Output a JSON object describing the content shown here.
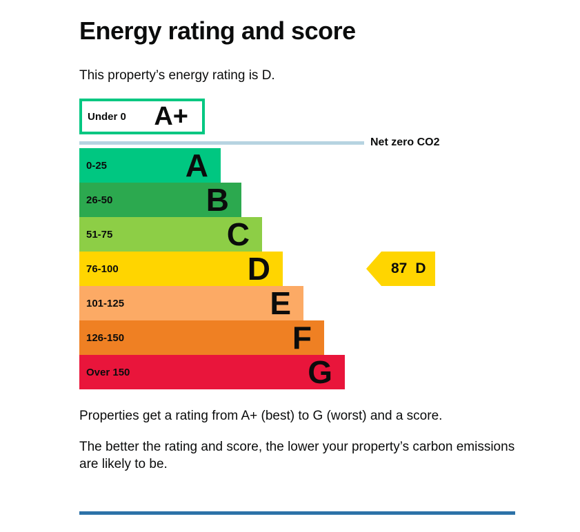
{
  "page": {
    "title": "Energy rating and score",
    "subtitle": "This property’s energy rating is D.",
    "footnote1": "Properties get a rating from A+ (best) to G (worst) and a score.",
    "footnote2": "The better the rating and score, the lower your property’s carbon emissions are likely to be."
  },
  "chart_data": {
    "type": "bar",
    "title": "Energy rating and score",
    "subtitle": "This property’s energy rating is D.",
    "net_zero_label": "Net zero CO2",
    "net_zero_line_color": "#b7d4e1",
    "top_band": {
      "band": "A+",
      "range": "Under 0",
      "fill": "#ffffff",
      "border_color": "#00c781"
    },
    "bands": [
      {
        "band": "A",
        "range": "0-25",
        "color": "#00c781"
      },
      {
        "band": "B",
        "range": "26-50",
        "color": "#2ca94f"
      },
      {
        "band": "C",
        "range": "51-75",
        "color": "#8dce46"
      },
      {
        "band": "D",
        "range": "76-100",
        "color": "#ffd500"
      },
      {
        "band": "E",
        "range": "101-125",
        "color": "#fcaa65"
      },
      {
        "band": "F",
        "range": "126-150",
        "color": "#ef8023"
      },
      {
        "band": "G",
        "range": "Over 150",
        "color": "#e9153b"
      }
    ],
    "current": {
      "score": "87",
      "band": "D",
      "color": "#ffd500",
      "aligned_band": "D"
    },
    "divider_color": "#2d72a8",
    "text_color": "#0b0c0c"
  }
}
